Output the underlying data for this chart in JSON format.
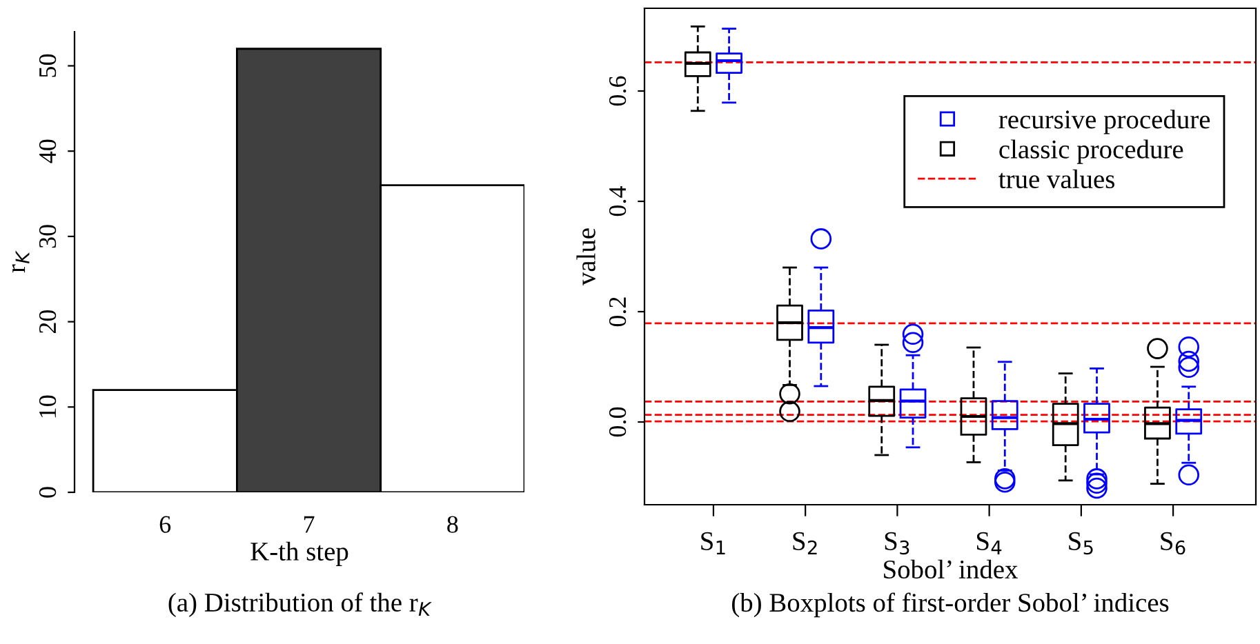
{
  "chart_data": [
    {
      "type": "bar",
      "title": "(a) Distribution of the r$_{K}$",
      "xlabel": "K-th step",
      "ylabel": "r$_{K}$",
      "categories": [
        "6",
        "7",
        "8"
      ],
      "values": [
        12,
        52,
        36
      ],
      "colors": [
        "#ffffff",
        "#404040",
        "#ffffff"
      ],
      "ylim": [
        0,
        54
      ],
      "yticks": [
        0,
        10,
        20,
        30,
        40,
        50
      ]
    },
    {
      "type": "box",
      "title": "(b) Boxplots of first-order Sobol’ indices",
      "xlabel": "Sobol’ index",
      "ylabel": "value",
      "categories": [
        "S$_{1}$",
        "S$_{2}$",
        "S$_{3}$",
        "S$_{4}$",
        "S$_{5}$",
        "S$_{6}$"
      ],
      "series": [
        {
          "name": "classic procedure",
          "color": "#000000",
          "boxes": [
            {
              "low": 0.564,
              "q1": 0.627,
              "median": 0.65,
              "q3": 0.67,
              "high": 0.717
            },
            {
              "low": 0.067,
              "q1": 0.149,
              "median": 0.18,
              "q3": 0.211,
              "high": 0.28,
              "outliers": [
                0.051,
                0.019
              ]
            },
            {
              "low": -0.06,
              "q1": 0.011,
              "median": 0.039,
              "q3": 0.064,
              "high": 0.14
            },
            {
              "low": -0.073,
              "q1": -0.023,
              "median": 0.01,
              "q3": 0.043,
              "high": 0.135
            },
            {
              "low": -0.106,
              "q1": -0.042,
              "median": -0.003,
              "q3": 0.033,
              "high": 0.088
            },
            {
              "low": -0.112,
              "q1": -0.03,
              "median": -0.003,
              "q3": 0.026,
              "high": 0.1,
              "outliers": [
                0.133
              ]
            }
          ]
        },
        {
          "name": "recursive procedure",
          "color": "#0000ff",
          "boxes": [
            {
              "low": 0.579,
              "q1": 0.633,
              "median": 0.655,
              "q3": 0.668,
              "high": 0.713
            },
            {
              "low": 0.065,
              "q1": 0.144,
              "median": 0.171,
              "q3": 0.202,
              "high": 0.28,
              "outliers": [
                0.332
              ]
            },
            {
              "low": -0.046,
              "q1": 0.008,
              "median": 0.038,
              "q3": 0.059,
              "high": 0.121,
              "outliers": [
                0.159,
                0.144
              ]
            },
            {
              "low": -0.088,
              "q1": -0.013,
              "median": 0.008,
              "q3": 0.038,
              "high": 0.109,
              "outliers": [
                -0.103,
                -0.109
              ]
            },
            {
              "low": -0.095,
              "q1": -0.019,
              "median": 0.005,
              "q3": 0.033,
              "high": 0.097,
              "outliers": [
                -0.103,
                -0.111,
                -0.12
              ]
            },
            {
              "low": -0.074,
              "q1": -0.021,
              "median": 0.003,
              "q3": 0.023,
              "high": 0.064,
              "outliers": [
                0.136,
                0.11,
                0.099,
                -0.096
              ]
            }
          ]
        }
      ],
      "ylim": [
        -0.15,
        0.75
      ],
      "yticks": [
        {
          "value": 0,
          "label": "0.0"
        },
        0.2,
        0.4,
        0.6
      ],
      "ref_lines": [
        {
          "axis": "y",
          "value": 0.652,
          "label": "true values",
          "color": "#ff0000",
          "line_style": "dashed"
        },
        {
          "axis": "y",
          "value": 0.179,
          "color": "#ff0000",
          "line_style": "dashed"
        },
        {
          "axis": "y",
          "value": 0.037,
          "color": "#ff0000",
          "line_style": "dashed"
        },
        {
          "axis": "y",
          "value": 0.013,
          "color": "#ff0000",
          "line_style": "dashed"
        },
        {
          "axis": "y",
          "value": 0.001,
          "color": "#ff0000",
          "line_style": "dashed"
        }
      ],
      "legend": "top right"
    }
  ]
}
